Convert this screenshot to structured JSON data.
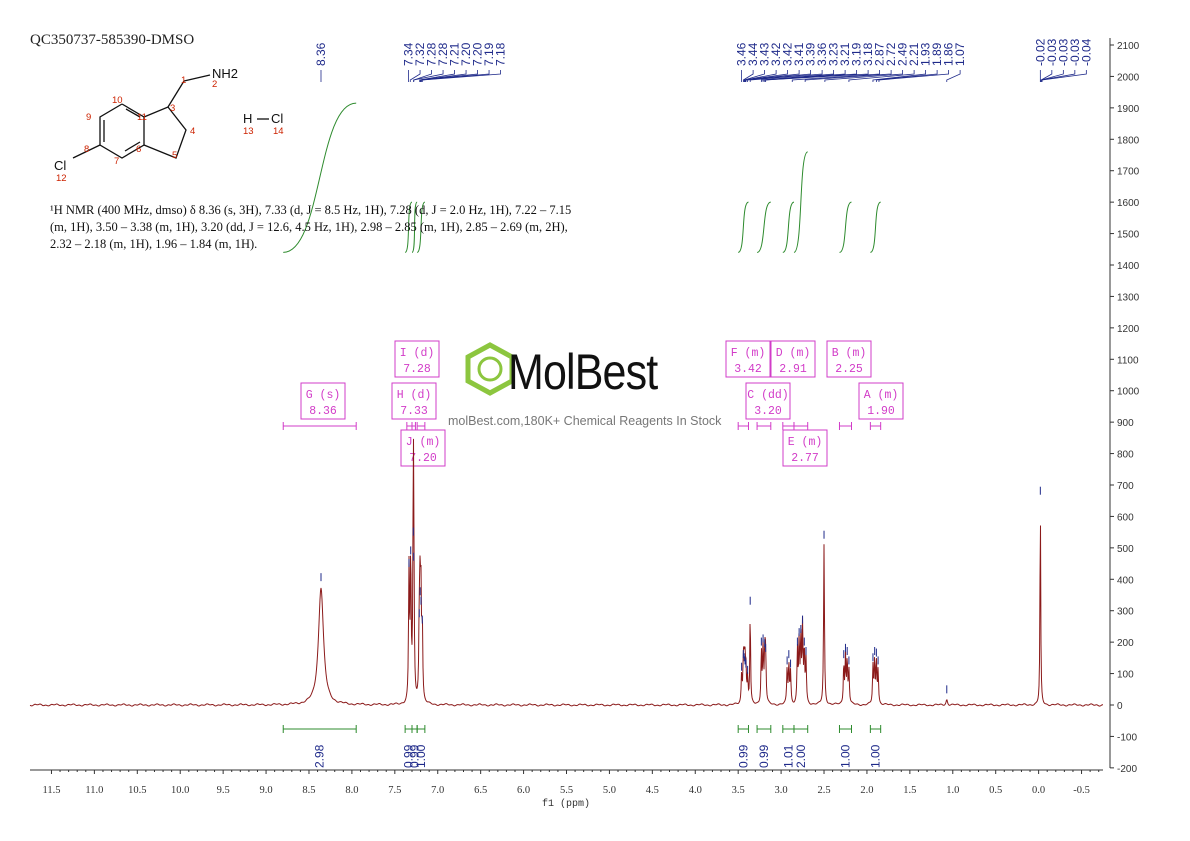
{
  "sample_id": "QC350737-585390-DMSO",
  "description": {
    "lines": [
      "¹H NMR (400 MHz, dmso) δ 8.36 (s, 3H), 7.33 (d, J = 8.5 Hz, 1H), 7.28 (d, J = 2.0 Hz, 1H), 7.22 – 7.15",
      "(m, 1H), 3.50 – 3.38 (m, 1H), 3.20 (dd, J = 12.6, 4.5 Hz, 1H), 2.98 – 2.85 (m, 1H), 2.85 – 2.69 (m, 2H),",
      "2.32 – 2.18 (m, 1H), 1.96 – 1.84 (m, 1H)."
    ]
  },
  "structure": {
    "atom_labels": [
      "NH2",
      "Cl",
      "H",
      "Cl"
    ],
    "atom_numbers": [
      "1",
      "2",
      "3",
      "4",
      "5",
      "6",
      "7",
      "8",
      "9",
      "10",
      "11",
      "12",
      "13",
      "14"
    ]
  },
  "watermark": {
    "brand": "MolBest",
    "text": "molBest.com,180K+ Chemical Reagents In Stock"
  },
  "colors": {
    "spectrum": "#8b1a1a",
    "integral": "#2e8b2e",
    "peak_label": "#1f2a8a",
    "multiplet_box": "#d23cc8",
    "axis": "#333333"
  },
  "chart_data": {
    "type": "line",
    "xlabel": "f1 (ppm)",
    "x_reversed": true,
    "xlim": [
      11.75,
      -0.75
    ],
    "ylim": [
      -200,
      2150
    ],
    "x_ticks": [
      "11.5",
      "11.0",
      "10.5",
      "10.0",
      "9.5",
      "9.0",
      "8.5",
      "8.0",
      "7.5",
      "7.0",
      "6.5",
      "6.0",
      "5.5",
      "5.0",
      "4.5",
      "4.0",
      "3.5",
      "3.0",
      "2.5",
      "2.0",
      "1.5",
      "1.0",
      "0.5",
      "0.0",
      "-0.5"
    ],
    "y_ticks": [
      "-200",
      "-100",
      "0",
      "100",
      "200",
      "300",
      "400",
      "500",
      "600",
      "700",
      "800",
      "900",
      "1000",
      "1100",
      "1200",
      "1300",
      "1400",
      "1500",
      "1600",
      "1700",
      "1800",
      "1900",
      "2000",
      "2100"
    ],
    "peak_labels": [
      "8.36",
      "7.34",
      "7.32",
      "7.28",
      "7.28",
      "7.21",
      "7.20",
      "7.20",
      "7.19",
      "7.18",
      "3.46",
      "3.44",
      "3.43",
      "3.42",
      "3.42",
      "3.41",
      "3.39",
      "3.36",
      "3.23",
      "3.21",
      "3.19",
      "3.18",
      "2.87",
      "2.72",
      "2.49",
      "2.21",
      "1.93",
      "1.89",
      "1.86",
      "1.07",
      "-0.02",
      "-0.03",
      "-0.03",
      "-0.03",
      "-0.04"
    ],
    "peaks": [
      {
        "ppm": 8.36,
        "height": 375,
        "width": 0.035
      },
      {
        "ppm": 7.335,
        "height": 420,
        "width": 0.006
      },
      {
        "ppm": 7.315,
        "height": 460,
        "width": 0.006
      },
      {
        "ppm": 7.285,
        "height": 520,
        "width": 0.006
      },
      {
        "ppm": 7.28,
        "height": 440,
        "width": 0.006
      },
      {
        "ppm": 7.215,
        "height": 260,
        "width": 0.006
      },
      {
        "ppm": 7.205,
        "height": 330,
        "width": 0.006
      },
      {
        "ppm": 7.195,
        "height": 300,
        "width": 0.006
      },
      {
        "ppm": 7.18,
        "height": 240,
        "width": 0.006
      },
      {
        "ppm": 3.46,
        "height": 90,
        "width": 0.006
      },
      {
        "ppm": 3.44,
        "height": 130,
        "width": 0.006
      },
      {
        "ppm": 3.43,
        "height": 120,
        "width": 0.006
      },
      {
        "ppm": 3.42,
        "height": 110,
        "width": 0.006
      },
      {
        "ppm": 3.41,
        "height": 100,
        "width": 0.006
      },
      {
        "ppm": 3.39,
        "height": 80,
        "width": 0.006
      },
      {
        "ppm": 3.36,
        "height": 300,
        "width": 0.005
      },
      {
        "ppm": 3.23,
        "height": 170,
        "width": 0.006
      },
      {
        "ppm": 3.21,
        "height": 180,
        "width": 0.006
      },
      {
        "ppm": 3.19,
        "height": 165,
        "width": 0.006
      },
      {
        "ppm": 3.18,
        "height": 150,
        "width": 0.006
      },
      {
        "ppm": 2.93,
        "height": 110,
        "width": 0.006
      },
      {
        "ppm": 2.91,
        "height": 130,
        "width": 0.006
      },
      {
        "ppm": 2.89,
        "height": 100,
        "width": 0.006
      },
      {
        "ppm": 2.81,
        "height": 170,
        "width": 0.006
      },
      {
        "ppm": 2.79,
        "height": 200,
        "width": 0.006
      },
      {
        "ppm": 2.77,
        "height": 210,
        "width": 0.006
      },
      {
        "ppm": 2.75,
        "height": 240,
        "width": 0.006
      },
      {
        "ppm": 2.73,
        "height": 170,
        "width": 0.006
      },
      {
        "ppm": 2.71,
        "height": 140,
        "width": 0.006
      },
      {
        "ppm": 2.5,
        "height": 510,
        "width": 0.006
      },
      {
        "ppm": 2.27,
        "height": 130,
        "width": 0.006
      },
      {
        "ppm": 2.25,
        "height": 150,
        "width": 0.006
      },
      {
        "ppm": 2.23,
        "height": 140,
        "width": 0.006
      },
      {
        "ppm": 2.21,
        "height": 110,
        "width": 0.006
      },
      {
        "ppm": 1.93,
        "height": 120,
        "width": 0.006
      },
      {
        "ppm": 1.91,
        "height": 140,
        "width": 0.006
      },
      {
        "ppm": 1.89,
        "height": 135,
        "width": 0.006
      },
      {
        "ppm": 1.87,
        "height": 110,
        "width": 0.006
      },
      {
        "ppm": 1.07,
        "height": 18,
        "width": 0.01
      },
      {
        "ppm": -0.02,
        "height": 650,
        "width": 0.005
      }
    ],
    "integrals": [
      {
        "from": 8.8,
        "to": 7.95,
        "value": "2.98",
        "level_start": 1440,
        "level_end": 1915
      },
      {
        "from": 7.38,
        "to": 7.3,
        "value": "0.99",
        "level_start": 1440,
        "level_end": 1600
      },
      {
        "from": 7.3,
        "to": 7.24,
        "value": "0.99",
        "level_start": 1440,
        "level_end": 1600
      },
      {
        "from": 7.24,
        "to": 7.15,
        "value": "1.00",
        "level_start": 1440,
        "level_end": 1600
      },
      {
        "from": 3.5,
        "to": 3.38,
        "value": "0.99",
        "level_start": 1440,
        "level_end": 1600
      },
      {
        "from": 3.28,
        "to": 3.12,
        "value": "0.99",
        "level_start": 1440,
        "level_end": 1600
      },
      {
        "from": 2.98,
        "to": 2.85,
        "value": "1.01",
        "level_start": 1440,
        "level_end": 1600
      },
      {
        "from": 2.85,
        "to": 2.69,
        "value": "2.00",
        "level_start": 1440,
        "level_end": 1760
      },
      {
        "from": 2.32,
        "to": 2.18,
        "value": "1.00",
        "level_start": 1440,
        "level_end": 1600
      },
      {
        "from": 1.96,
        "to": 1.84,
        "value": "1.00",
        "level_start": 1440,
        "level_end": 1600
      }
    ],
    "multiplets": [
      {
        "letter": "G",
        "mult": "(s)",
        "ppm_label": "8.36",
        "from": 8.8,
        "to": 7.95
      },
      {
        "letter": "I",
        "mult": "(d)",
        "ppm_label": "7.28",
        "from": 7.3,
        "to": 7.26
      },
      {
        "letter": "H",
        "mult": "(d)",
        "ppm_label": "7.33",
        "from": 7.36,
        "to": 7.3
      },
      {
        "letter": "J",
        "mult": "(m)",
        "ppm_label": "7.20",
        "from": 7.24,
        "to": 7.15
      },
      {
        "letter": "F",
        "mult": "(m)",
        "ppm_label": "3.42",
        "from": 3.5,
        "to": 3.38
      },
      {
        "letter": "D",
        "mult": "(m)",
        "ppm_label": "2.91",
        "from": 2.98,
        "to": 2.85
      },
      {
        "letter": "C",
        "mult": "(dd)",
        "ppm_label": "3.20",
        "from": 3.28,
        "to": 3.12
      },
      {
        "letter": "E",
        "mult": "(m)",
        "ppm_label": "2.77",
        "from": 2.85,
        "to": 2.69
      },
      {
        "letter": "B",
        "mult": "(m)",
        "ppm_label": "2.25",
        "from": 2.32,
        "to": 2.18
      },
      {
        "letter": "A",
        "mult": "(m)",
        "ppm_label": "1.90",
        "from": 1.96,
        "to": 1.84
      }
    ]
  }
}
